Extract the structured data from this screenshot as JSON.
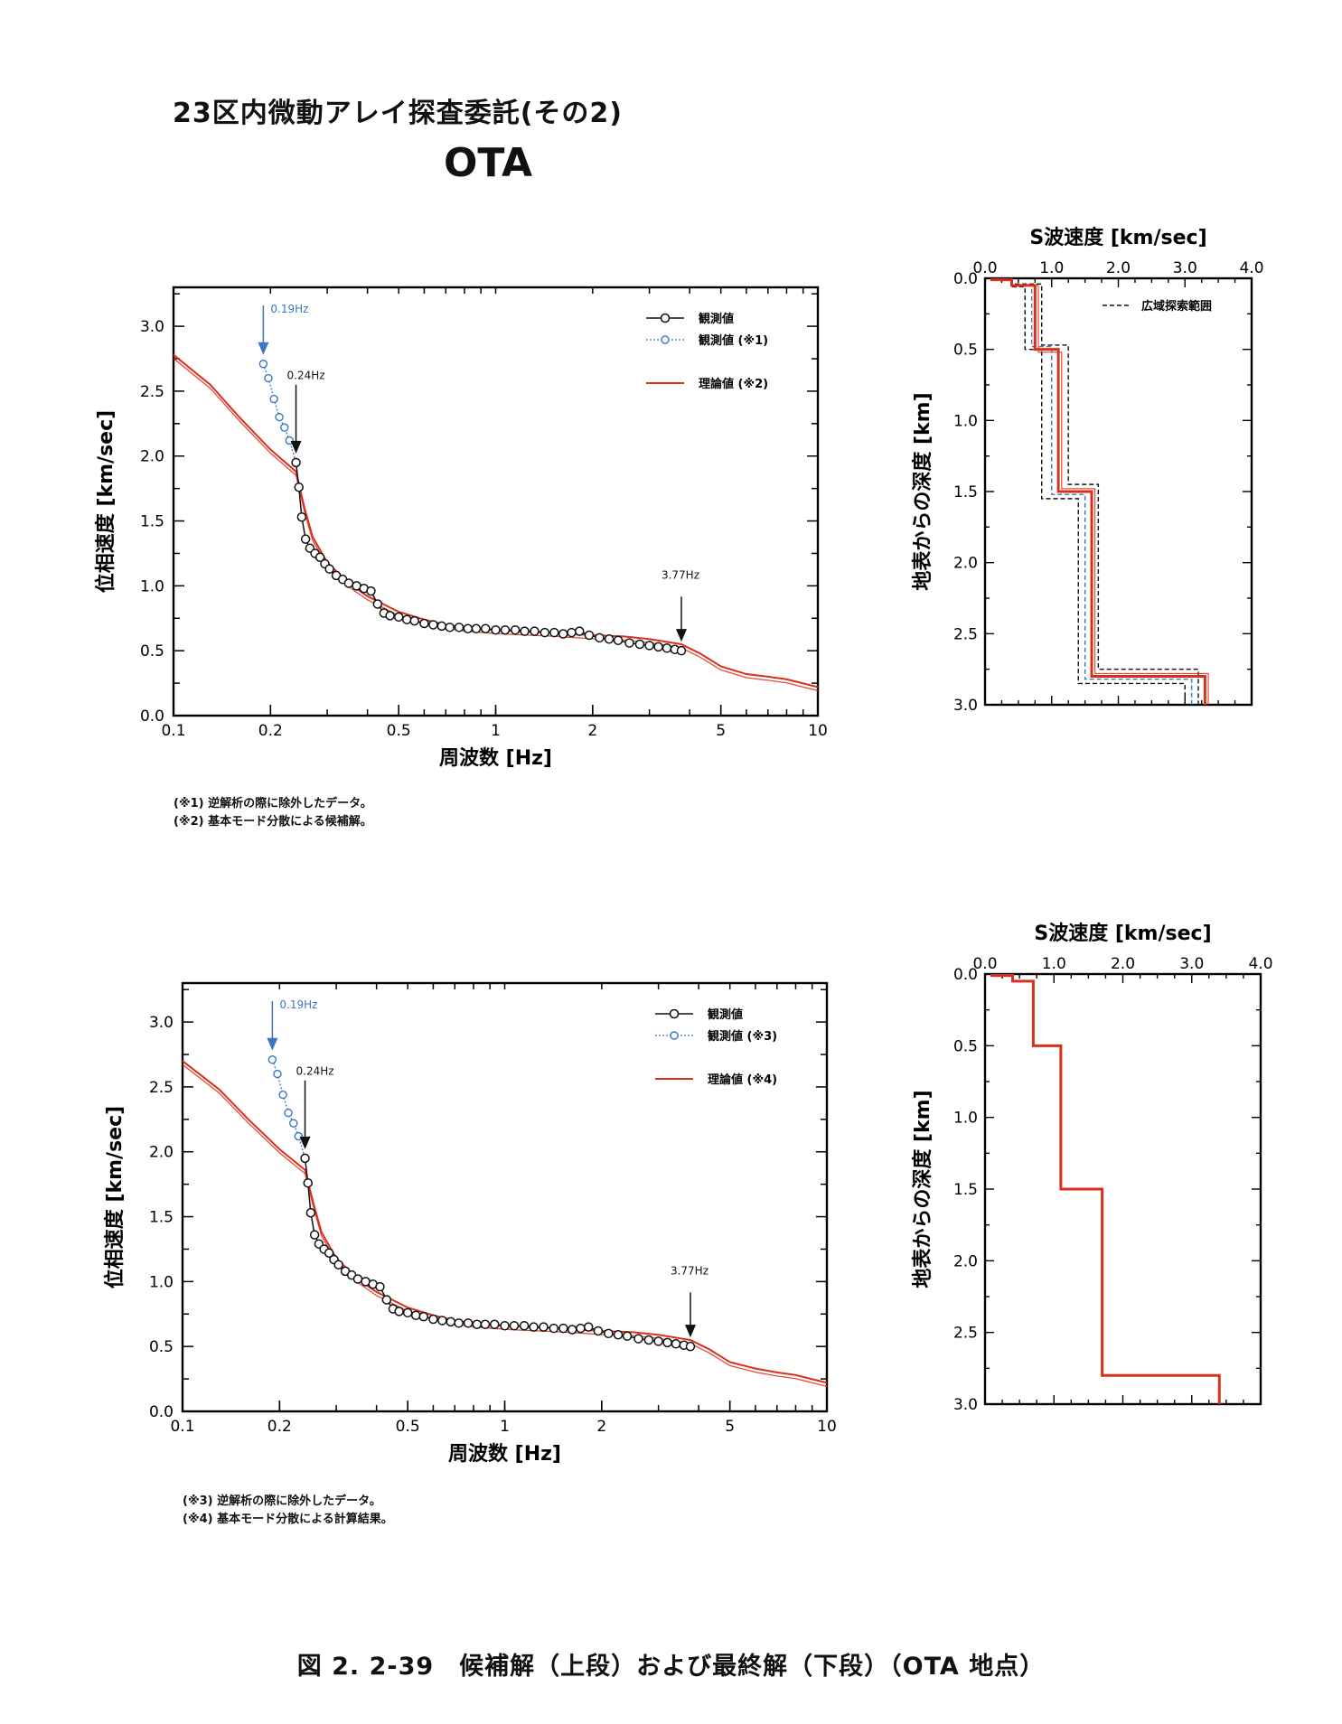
{
  "header": {
    "title": "23区内微動アレイ探査委託(その2)",
    "site": "OTA"
  },
  "caption": "図 2. 2-39　候補解（上段）および最終解（下段）（OTA 地点）",
  "colors": {
    "observed": "#111111",
    "excluded": "#3a78c2",
    "theory": "#d9301c",
    "range": "#111111",
    "axis": "#000000"
  },
  "chart_data": [
    {
      "type": "line",
      "panel": "upper-dispersion",
      "title": "",
      "xlabel": "周波数 [Hz]",
      "ylabel": "位相速度 [km/sec]",
      "xscale": "log",
      "xlim": [
        0.1,
        10
      ],
      "ylim": [
        0,
        3.3
      ],
      "xticks": [
        0.1,
        0.2,
        0.5,
        1,
        2,
        5,
        10
      ],
      "xtick_labels": [
        "0.1",
        "0.2",
        "0.5",
        "1",
        "2",
        "5",
        "10"
      ],
      "yticks": [
        0,
        0.5,
        1.0,
        1.5,
        2.0,
        2.5,
        3.0
      ],
      "ytick_labels": [
        "0.0",
        "0.5",
        "1.0",
        "1.5",
        "2.0",
        "2.5",
        "3.0"
      ],
      "legend_position": "top-right",
      "series": [
        {
          "name": "観測値",
          "style": "observed",
          "x": [
            0.24,
            0.245,
            0.25,
            0.257,
            0.265,
            0.275,
            0.285,
            0.295,
            0.305,
            0.32,
            0.335,
            0.35,
            0.37,
            0.39,
            0.41,
            0.43,
            0.45,
            0.47,
            0.5,
            0.53,
            0.56,
            0.6,
            0.64,
            0.68,
            0.72,
            0.77,
            0.82,
            0.87,
            0.93,
            1.0,
            1.07,
            1.15,
            1.23,
            1.32,
            1.42,
            1.52,
            1.62,
            1.72,
            1.82,
            1.95,
            2.1,
            2.25,
            2.4,
            2.6,
            2.8,
            3.0,
            3.2,
            3.4,
            3.6,
            3.77
          ],
          "y": [
            1.95,
            1.76,
            1.53,
            1.36,
            1.29,
            1.25,
            1.22,
            1.17,
            1.13,
            1.08,
            1.05,
            1.02,
            1.0,
            0.98,
            0.96,
            0.86,
            0.79,
            0.77,
            0.76,
            0.74,
            0.73,
            0.71,
            0.7,
            0.69,
            0.68,
            0.68,
            0.67,
            0.67,
            0.67,
            0.66,
            0.66,
            0.66,
            0.65,
            0.65,
            0.64,
            0.64,
            0.63,
            0.64,
            0.65,
            0.62,
            0.6,
            0.59,
            0.58,
            0.56,
            0.55,
            0.54,
            0.53,
            0.52,
            0.51,
            0.5
          ]
        },
        {
          "name": "観測値 (※1)",
          "style": "excluded",
          "x": [
            0.19,
            0.197,
            0.205,
            0.213,
            0.221,
            0.229,
            0.24
          ],
          "y": [
            2.71,
            2.6,
            2.44,
            2.3,
            2.22,
            2.12,
            1.95
          ]
        },
        {
          "name": "理論値 (※2)",
          "style": "theory",
          "x": [
            0.1,
            0.13,
            0.16,
            0.2,
            0.24,
            0.255,
            0.27,
            0.3,
            0.35,
            0.4,
            0.5,
            0.6,
            0.7,
            0.8,
            1.0,
            1.2,
            1.5,
            2.0,
            2.5,
            3.0,
            3.77,
            4.3,
            5.0,
            6.0,
            7.0,
            8.0,
            10.0
          ],
          "y": [
            2.78,
            2.55,
            2.3,
            2.05,
            1.88,
            1.6,
            1.38,
            1.18,
            1.02,
            0.92,
            0.8,
            0.74,
            0.7,
            0.68,
            0.66,
            0.65,
            0.64,
            0.62,
            0.61,
            0.59,
            0.55,
            0.48,
            0.38,
            0.32,
            0.3,
            0.28,
            0.22
          ]
        }
      ],
      "annotations": [
        {
          "x": 0.19,
          "text": "0.19Hz",
          "color": "blue"
        },
        {
          "x": 0.24,
          "text": "0.24Hz",
          "color": "black"
        },
        {
          "x": 3.77,
          "text": "3.77Hz",
          "color": "black"
        }
      ],
      "notes": [
        "(※1) 逆解析の際に除外したデータ。",
        "(※2) 基本モード分散による候補解。"
      ]
    },
    {
      "type": "line",
      "panel": "upper-profile",
      "title": "S波速度 [km/sec]",
      "xlabel": "S波速度 [km/sec]",
      "ylabel": "地表からの深度 [km]",
      "xlim": [
        0,
        4.0
      ],
      "ylim": [
        3.0,
        0
      ],
      "xticks": [
        0,
        1,
        2,
        3,
        4
      ],
      "xtick_labels": [
        "0.0",
        "1.0",
        "2.0",
        "3.0",
        "4.0"
      ],
      "yticks": [
        0,
        0.5,
        1.0,
        1.5,
        2.0,
        2.5,
        3.0
      ],
      "ytick_labels": [
        "0.0",
        "0.5",
        "1.0",
        "1.5",
        "2.0",
        "2.5",
        "3.0"
      ],
      "legend_position": "top-right",
      "series": [
        {
          "name": "",
          "style": "theory",
          "vs": [
            0.1,
            0.4,
            0.75,
            1.1,
            1.6,
            3.3
          ],
          "z_top": [
            0.0,
            0.01,
            0.05,
            0.5,
            1.5,
            2.8
          ]
        },
        {
          "name": "広域探索範囲",
          "style": "range",
          "vs": [
            0.1,
            0.4,
            0.85,
            1.25,
            1.7,
            3.2
          ],
          "z_top": [
            0.0,
            0.01,
            0.04,
            0.47,
            1.45,
            2.75
          ]
        },
        {
          "name": "",
          "style": "range",
          "vs": [
            0.1,
            0.4,
            0.6,
            0.85,
            1.4,
            3.0
          ],
          "z_top": [
            0.0,
            0.01,
            0.06,
            0.5,
            1.55,
            2.85
          ]
        },
        {
          "name": "",
          "style": "excluded",
          "vs": [
            0.1,
            0.4,
            0.7,
            1.0,
            1.5,
            3.1
          ],
          "z_top": [
            0.0,
            0.01,
            0.05,
            0.48,
            1.52,
            2.82
          ]
        },
        {
          "name": "",
          "style": "theory-thin",
          "vs": [
            0.1,
            0.4,
            0.8,
            1.15,
            1.65,
            3.35
          ],
          "z_top": [
            0.0,
            0.01,
            0.05,
            0.52,
            1.48,
            2.78
          ]
        }
      ]
    },
    {
      "type": "line",
      "panel": "lower-dispersion",
      "title": "",
      "xlabel": "周波数 [Hz]",
      "ylabel": "位相速度 [km/sec]",
      "xscale": "log",
      "xlim": [
        0.1,
        10
      ],
      "ylim": [
        0,
        3.3
      ],
      "xticks": [
        0.1,
        0.2,
        0.5,
        1,
        2,
        5,
        10
      ],
      "xtick_labels": [
        "0.1",
        "0.2",
        "0.5",
        "1",
        "2",
        "5",
        "10"
      ],
      "yticks": [
        0,
        0.5,
        1.0,
        1.5,
        2.0,
        2.5,
        3.0
      ],
      "ytick_labels": [
        "0.0",
        "0.5",
        "1.0",
        "1.5",
        "2.0",
        "2.5",
        "3.0"
      ],
      "legend_position": "top-right",
      "series": [
        {
          "name": "観測値",
          "style": "observed",
          "x": [
            0.24,
            0.245,
            0.25,
            0.257,
            0.265,
            0.275,
            0.285,
            0.295,
            0.305,
            0.32,
            0.335,
            0.35,
            0.37,
            0.39,
            0.41,
            0.43,
            0.45,
            0.47,
            0.5,
            0.53,
            0.56,
            0.6,
            0.64,
            0.68,
            0.72,
            0.77,
            0.82,
            0.87,
            0.93,
            1.0,
            1.07,
            1.15,
            1.23,
            1.32,
            1.42,
            1.52,
            1.62,
            1.72,
            1.82,
            1.95,
            2.1,
            2.25,
            2.4,
            2.6,
            2.8,
            3.0,
            3.2,
            3.4,
            3.6,
            3.77
          ],
          "y": [
            1.95,
            1.76,
            1.53,
            1.36,
            1.29,
            1.25,
            1.22,
            1.17,
            1.13,
            1.08,
            1.05,
            1.02,
            1.0,
            0.98,
            0.96,
            0.86,
            0.79,
            0.77,
            0.76,
            0.74,
            0.73,
            0.71,
            0.7,
            0.69,
            0.68,
            0.68,
            0.67,
            0.67,
            0.67,
            0.66,
            0.66,
            0.66,
            0.65,
            0.65,
            0.64,
            0.64,
            0.63,
            0.64,
            0.65,
            0.62,
            0.6,
            0.59,
            0.58,
            0.56,
            0.55,
            0.54,
            0.53,
            0.52,
            0.51,
            0.5
          ]
        },
        {
          "name": "観測値 (※3)",
          "style": "excluded",
          "x": [
            0.19,
            0.197,
            0.205,
            0.213,
            0.221,
            0.229,
            0.24
          ],
          "y": [
            2.71,
            2.6,
            2.44,
            2.3,
            2.22,
            2.12,
            1.95
          ]
        },
        {
          "name": "理論値 (※4)",
          "style": "theory",
          "x": [
            0.1,
            0.13,
            0.16,
            0.2,
            0.24,
            0.255,
            0.27,
            0.3,
            0.35,
            0.4,
            0.5,
            0.6,
            0.7,
            0.8,
            1.0,
            1.2,
            1.5,
            2.0,
            2.5,
            3.0,
            3.77,
            4.3,
            5.0,
            6.0,
            7.0,
            8.0,
            10.0
          ],
          "y": [
            2.7,
            2.48,
            2.25,
            2.02,
            1.86,
            1.6,
            1.38,
            1.18,
            1.02,
            0.92,
            0.8,
            0.74,
            0.7,
            0.68,
            0.66,
            0.65,
            0.64,
            0.62,
            0.61,
            0.59,
            0.55,
            0.48,
            0.38,
            0.33,
            0.3,
            0.28,
            0.22
          ]
        }
      ],
      "annotations": [
        {
          "x": 0.19,
          "text": "0.19Hz",
          "color": "blue"
        },
        {
          "x": 0.24,
          "text": "0.24Hz",
          "color": "black"
        },
        {
          "x": 3.77,
          "text": "3.77Hz",
          "color": "black"
        }
      ],
      "notes": [
        "(※3) 逆解析の際に除外したデータ。",
        "(※4) 基本モード分散による計算結果。"
      ]
    },
    {
      "type": "line",
      "panel": "lower-profile",
      "title": "S波速度 [km/sec]",
      "xlabel": "S波速度 [km/sec]",
      "ylabel": "地表からの深度 [km]",
      "xlim": [
        0,
        4.0
      ],
      "ylim": [
        3.0,
        0
      ],
      "xticks": [
        0,
        1,
        2,
        3,
        4
      ],
      "xtick_labels": [
        "0.0",
        "1.0",
        "2.0",
        "3.0",
        "4.0"
      ],
      "yticks": [
        0,
        0.5,
        1.0,
        1.5,
        2.0,
        2.5,
        3.0
      ],
      "ytick_labels": [
        "0.0",
        "0.5",
        "1.0",
        "1.5",
        "2.0",
        "2.5",
        "3.0"
      ],
      "series": [
        {
          "name": "",
          "style": "theory",
          "vs": [
            0.1,
            0.4,
            0.7,
            1.1,
            1.7,
            3.4
          ],
          "z_top": [
            0.0,
            0.01,
            0.05,
            0.5,
            1.5,
            2.8
          ]
        }
      ]
    }
  ]
}
